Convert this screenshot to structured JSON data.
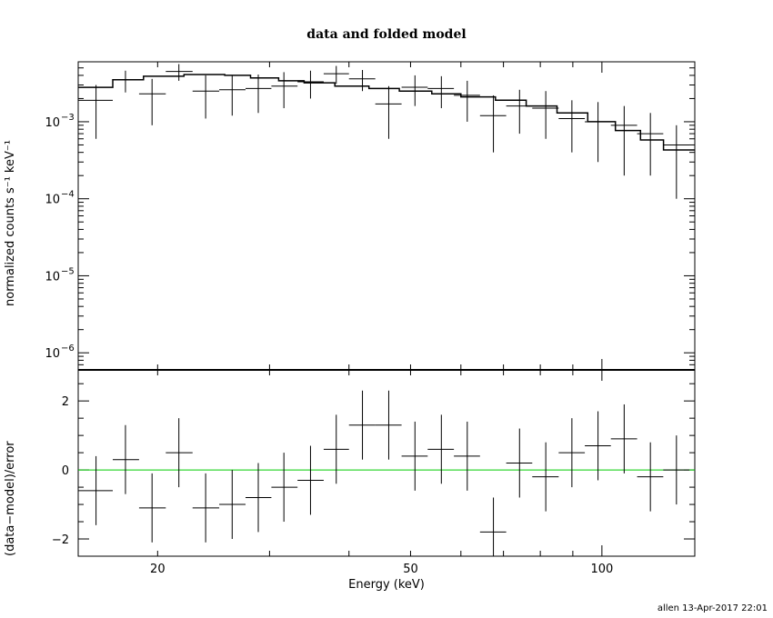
{
  "title": "data and folded model",
  "footer": "allen 13-Apr-2017 22:01",
  "colors": {
    "axes": "#000000",
    "zero_line": "#00cc00",
    "background": "#ffffff"
  },
  "chart_data": [
    {
      "type": "scatter",
      "panel": "top",
      "ylabel": "normalized counts s⁻¹ keV⁻¹",
      "x_scale": "log",
      "y_scale": "log",
      "xlim": [
        15,
        140
      ],
      "ylim": [
        6e-07,
        0.006
      ],
      "yticks": [
        {
          "value": 0.001,
          "base": "10",
          "exp": "−3"
        },
        {
          "value": 0.0001,
          "base": "10",
          "exp": "−4"
        },
        {
          "value": 1e-05,
          "base": "10",
          "exp": "−5"
        },
        {
          "value": 1e-06,
          "base": "10",
          "exp": "−6"
        }
      ],
      "model_step": {
        "edges": [
          15,
          17,
          19,
          22,
          25.5,
          28,
          31,
          34,
          38,
          43,
          48,
          54,
          60,
          68,
          76,
          85,
          95,
          105,
          115,
          125,
          140
        ],
        "values": [
          0.0028,
          0.0035,
          0.0039,
          0.0041,
          0.004,
          0.0037,
          0.0034,
          0.0032,
          0.0029,
          0.0027,
          0.0025,
          0.0023,
          0.0021,
          0.0019,
          0.0016,
          0.0013,
          0.001,
          0.00077,
          0.00058,
          0.00043
        ]
      },
      "points": [
        {
          "x": 16.0,
          "xlo": 15.0,
          "xhi": 17.0,
          "y": 0.0019,
          "ylo": 0.0006,
          "yhi": 0.003
        },
        {
          "x": 17.8,
          "xlo": 17.0,
          "xhi": 18.7,
          "y": 0.0035,
          "ylo": 0.0024,
          "yhi": 0.0046
        },
        {
          "x": 19.6,
          "xlo": 18.7,
          "xhi": 20.6,
          "y": 0.0023,
          "ylo": 0.0009,
          "yhi": 0.0036
        },
        {
          "x": 21.6,
          "xlo": 20.6,
          "xhi": 22.7,
          "y": 0.0045,
          "ylo": 0.0034,
          "yhi": 0.0056
        },
        {
          "x": 23.8,
          "xlo": 22.7,
          "xhi": 25.0,
          "y": 0.0025,
          "ylo": 0.0011,
          "yhi": 0.004
        },
        {
          "x": 26.2,
          "xlo": 25.0,
          "xhi": 27.5,
          "y": 0.0026,
          "ylo": 0.0012,
          "yhi": 0.004
        },
        {
          "x": 28.8,
          "xlo": 27.5,
          "xhi": 30.2,
          "y": 0.0027,
          "ylo": 0.0013,
          "yhi": 0.0041
        },
        {
          "x": 31.6,
          "xlo": 30.2,
          "xhi": 33.2,
          "y": 0.0029,
          "ylo": 0.0015,
          "yhi": 0.0044
        },
        {
          "x": 34.8,
          "xlo": 33.2,
          "xhi": 36.5,
          "y": 0.0033,
          "ylo": 0.002,
          "yhi": 0.0046
        },
        {
          "x": 38.2,
          "xlo": 36.5,
          "xhi": 40.0,
          "y": 0.0042,
          "ylo": 0.0031,
          "yhi": 0.0053
        },
        {
          "x": 42.0,
          "xlo": 40.0,
          "xhi": 44.0,
          "y": 0.0036,
          "ylo": 0.0025,
          "yhi": 0.0047
        },
        {
          "x": 46.2,
          "xlo": 44.0,
          "xhi": 48.4,
          "y": 0.0017,
          "ylo": 0.0006,
          "yhi": 0.0029
        },
        {
          "x": 50.8,
          "xlo": 48.4,
          "xhi": 53.2,
          "y": 0.0028,
          "ylo": 0.0016,
          "yhi": 0.004
        },
        {
          "x": 55.9,
          "xlo": 53.2,
          "xhi": 58.5,
          "y": 0.0027,
          "ylo": 0.0015,
          "yhi": 0.0039
        },
        {
          "x": 61.4,
          "xlo": 58.5,
          "xhi": 64.3,
          "y": 0.0022,
          "ylo": 0.001,
          "yhi": 0.0034
        },
        {
          "x": 67.5,
          "xlo": 64.3,
          "xhi": 70.7,
          "y": 0.0012,
          "ylo": 0.0004,
          "yhi": 0.0022
        },
        {
          "x": 74.2,
          "xlo": 70.7,
          "xhi": 77.7,
          "y": 0.0016,
          "ylo": 0.0007,
          "yhi": 0.0026
        },
        {
          "x": 81.6,
          "xlo": 77.7,
          "xhi": 85.5,
          "y": 0.0015,
          "ylo": 0.0006,
          "yhi": 0.0025
        },
        {
          "x": 89.7,
          "xlo": 85.5,
          "xhi": 94.0,
          "y": 0.0011,
          "ylo": 0.0004,
          "yhi": 0.0019
        },
        {
          "x": 98.6,
          "xlo": 94.0,
          "xhi": 103.3,
          "y": 0.001,
          "ylo": 0.0003,
          "yhi": 0.0018
        },
        {
          "x": 108.4,
          "xlo": 103.3,
          "xhi": 113.6,
          "y": 0.0009,
          "ylo": 0.0002,
          "yhi": 0.0016
        },
        {
          "x": 119.2,
          "xlo": 113.6,
          "xhi": 124.9,
          "y": 0.0007,
          "ylo": 0.0002,
          "yhi": 0.0013
        },
        {
          "x": 131.0,
          "xlo": 124.9,
          "xhi": 137.3,
          "y": 0.0005,
          "ylo": 0.0001,
          "yhi": 0.0009
        }
      ]
    },
    {
      "type": "scatter",
      "panel": "bottom",
      "xlabel": "Energy (keV)",
      "ylabel": "(data−model)/error",
      "x_scale": "log",
      "xlim": [
        15,
        140
      ],
      "ylim": [
        -2.5,
        2.9
      ],
      "xticks": [
        20,
        50,
        100
      ],
      "yticks": [
        -2,
        0,
        2
      ],
      "zero_line": 0,
      "points": [
        {
          "x": 16.0,
          "xlo": 15.0,
          "xhi": 17.0,
          "y": -0.6,
          "ylo": -1.6,
          "yhi": 0.4
        },
        {
          "x": 17.8,
          "xlo": 17.0,
          "xhi": 18.7,
          "y": 0.3,
          "ylo": -0.7,
          "yhi": 1.3
        },
        {
          "x": 19.6,
          "xlo": 18.7,
          "xhi": 20.6,
          "y": -1.1,
          "ylo": -2.1,
          "yhi": -0.1
        },
        {
          "x": 21.6,
          "xlo": 20.6,
          "xhi": 22.7,
          "y": 0.5,
          "ylo": -0.5,
          "yhi": 1.5
        },
        {
          "x": 23.8,
          "xlo": 22.7,
          "xhi": 25.0,
          "y": -1.1,
          "ylo": -2.1,
          "yhi": -0.1
        },
        {
          "x": 26.2,
          "xlo": 25.0,
          "xhi": 27.5,
          "y": -1.0,
          "ylo": -2.0,
          "yhi": 0.0
        },
        {
          "x": 28.8,
          "xlo": 27.5,
          "xhi": 30.2,
          "y": -0.8,
          "ylo": -1.8,
          "yhi": 0.2
        },
        {
          "x": 31.6,
          "xlo": 30.2,
          "xhi": 33.2,
          "y": -0.5,
          "ylo": -1.5,
          "yhi": 0.5
        },
        {
          "x": 34.8,
          "xlo": 33.2,
          "xhi": 36.5,
          "y": -0.3,
          "ylo": -1.3,
          "yhi": 0.7
        },
        {
          "x": 38.2,
          "xlo": 36.5,
          "xhi": 40.0,
          "y": 0.6,
          "ylo": -0.4,
          "yhi": 1.6
        },
        {
          "x": 42.0,
          "xlo": 40.0,
          "xhi": 44.0,
          "y": 1.3,
          "ylo": 0.3,
          "yhi": 2.3
        },
        {
          "x": 46.2,
          "xlo": 44.0,
          "xhi": 48.4,
          "y": 1.3,
          "ylo": 0.3,
          "yhi": 2.3
        },
        {
          "x": 50.8,
          "xlo": 48.4,
          "xhi": 53.2,
          "y": 0.4,
          "ylo": -0.6,
          "yhi": 1.4
        },
        {
          "x": 55.9,
          "xlo": 53.2,
          "xhi": 58.5,
          "y": 0.6,
          "ylo": -0.4,
          "yhi": 1.6
        },
        {
          "x": 61.4,
          "xlo": 58.5,
          "xhi": 64.3,
          "y": 0.4,
          "ylo": -0.6,
          "yhi": 1.4
        },
        {
          "x": 67.5,
          "xlo": 64.3,
          "xhi": 70.7,
          "y": -1.8,
          "ylo": -2.5,
          "yhi": -0.8
        },
        {
          "x": 74.2,
          "xlo": 70.7,
          "xhi": 77.7,
          "y": 0.2,
          "ylo": -0.8,
          "yhi": 1.2
        },
        {
          "x": 81.6,
          "xlo": 77.7,
          "xhi": 85.5,
          "y": -0.2,
          "ylo": -1.2,
          "yhi": 0.8
        },
        {
          "x": 89.7,
          "xlo": 85.5,
          "xhi": 94.0,
          "y": 0.5,
          "ylo": -0.5,
          "yhi": 1.5
        },
        {
          "x": 98.6,
          "xlo": 94.0,
          "xhi": 103.3,
          "y": 0.7,
          "ylo": -0.3,
          "yhi": 1.7
        },
        {
          "x": 108.4,
          "xlo": 103.3,
          "xhi": 113.6,
          "y": 0.9,
          "ylo": -0.1,
          "yhi": 1.9
        },
        {
          "x": 119.2,
          "xlo": 113.6,
          "xhi": 124.9,
          "y": -0.2,
          "ylo": -1.2,
          "yhi": 0.8
        },
        {
          "x": 131.0,
          "xlo": 124.9,
          "xhi": 137.3,
          "y": 0.0,
          "ylo": -1.0,
          "yhi": 1.0
        }
      ]
    }
  ]
}
